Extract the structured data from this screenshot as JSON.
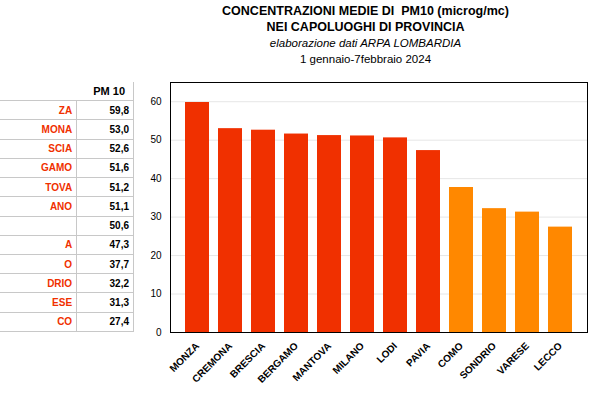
{
  "chart_data": {
    "type": "bar",
    "title": "CONCENTRAZIONI MEDIE DI  PM10 (microg/mc)",
    "subtitle": "NEI CAPOLUOGHI DI PROVINCIA",
    "annotations": [
      "elaborazione dati ARPA LOMBARDIA",
      "1 gennaio-7febbraio 2024"
    ],
    "categories": [
      "MONZA",
      "CREMONA",
      "BRESCIA",
      "BERGAMO",
      "MANTOVA",
      "MILANO",
      "LODI",
      "PAVIA",
      "COMO",
      "SONDRIO",
      "VARESE",
      "LECCO"
    ],
    "values": [
      59.8,
      53.0,
      52.6,
      51.6,
      51.2,
      51.1,
      50.6,
      47.3,
      37.7,
      32.2,
      31.3,
      27.4
    ],
    "colors": [
      "#f03000",
      "#f03000",
      "#f03000",
      "#f03000",
      "#f03000",
      "#f03000",
      "#f03000",
      "#f03000",
      "#ff8800",
      "#ff8800",
      "#ff8800",
      "#ff8800"
    ],
    "ylim": [
      0,
      65
    ],
    "yticks": [
      0,
      10,
      20,
      30,
      40,
      50,
      60
    ],
    "grid": true,
    "table": {
      "header": "PM 10",
      "names": [
        "ZA",
        "MONA",
        "SCIA",
        "GAMO",
        "TOVA",
        "ANO",
        null,
        "A",
        "O",
        "DRIO",
        "ESE",
        "CO"
      ],
      "name_colors": [
        "#f03000",
        "#f03000",
        "#f03000",
        "#f03000",
        "#f03000",
        "#f03000",
        "#0070c0",
        "#f03000",
        "#f03000",
        "#f03000",
        "#f03000",
        "#f03000"
      ],
      "value_labels": [
        "59,8",
        "53,0",
        "52,6",
        "51,6",
        "51,2",
        "51,1",
        "50,6",
        "47,3",
        "37,7",
        "32,2",
        "31,3",
        "27,4"
      ]
    }
  }
}
